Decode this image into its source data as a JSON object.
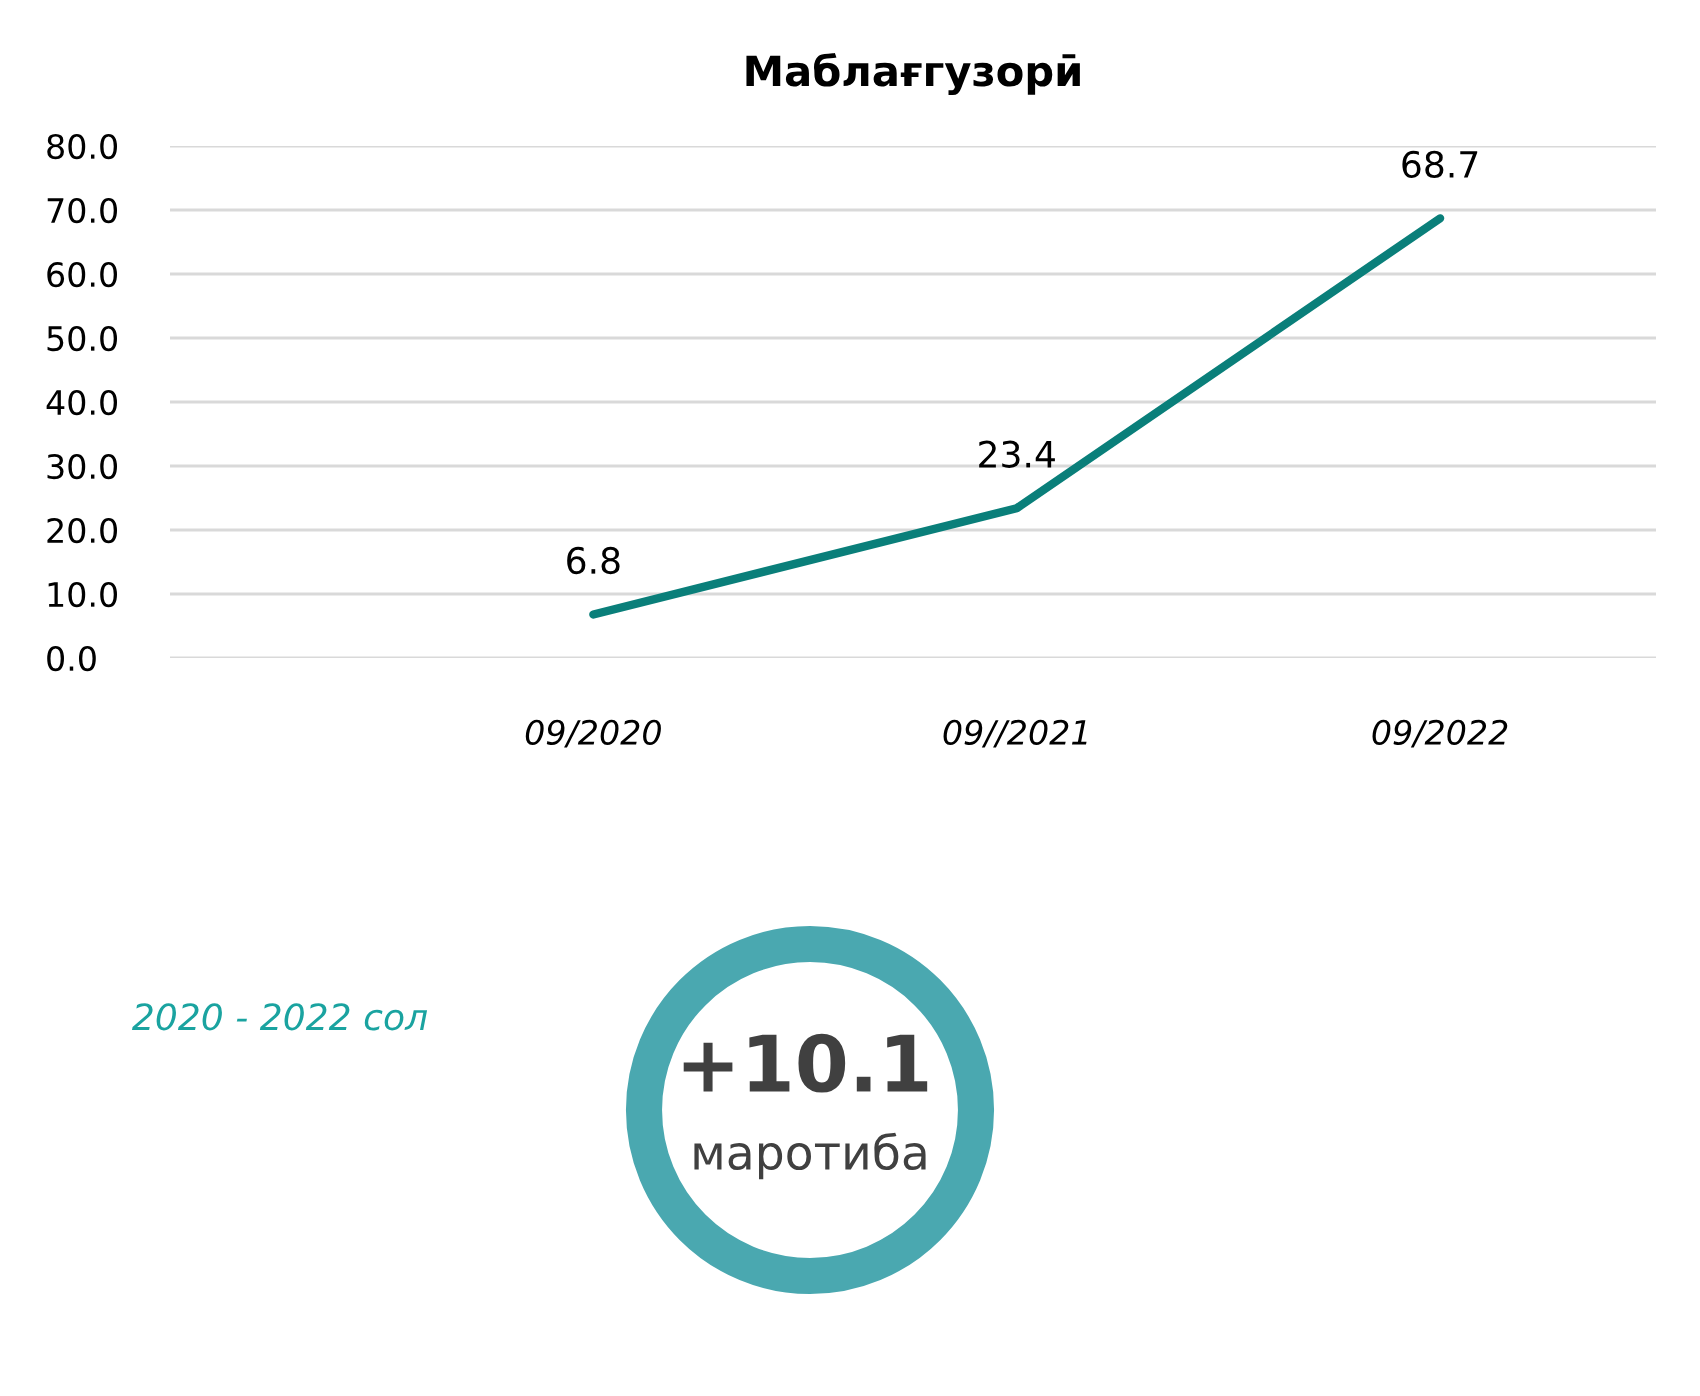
{
  "chart_data": {
    "type": "line",
    "title": "Маблағгузорӣ",
    "categories": [
      "09/2020",
      "09//2021",
      "09/2022"
    ],
    "series": [
      {
        "color": "#0a7f7a",
        "values": [
          6.8,
          23.4,
          68.7
        ]
      }
    ],
    "ylim": [
      0,
      80
    ],
    "yticks": [
      {
        "value": 0,
        "label": "0.0"
      },
      {
        "value": 10,
        "label": "10.0"
      },
      {
        "value": 20,
        "label": "20.0"
      },
      {
        "value": 30,
        "label": "30.0"
      },
      {
        "value": 40,
        "label": "40.0"
      },
      {
        "value": 50,
        "label": "50.0"
      },
      {
        "value": 60,
        "label": "60.0"
      },
      {
        "value": 70,
        "label": "70.0"
      },
      {
        "value": 80,
        "label": "80.0"
      }
    ],
    "grid": "y",
    "data_labels": true,
    "marker": "none",
    "annotations": [
      "2020 - 2022 сол",
      "+10.1",
      "маротиба"
    ]
  }
}
